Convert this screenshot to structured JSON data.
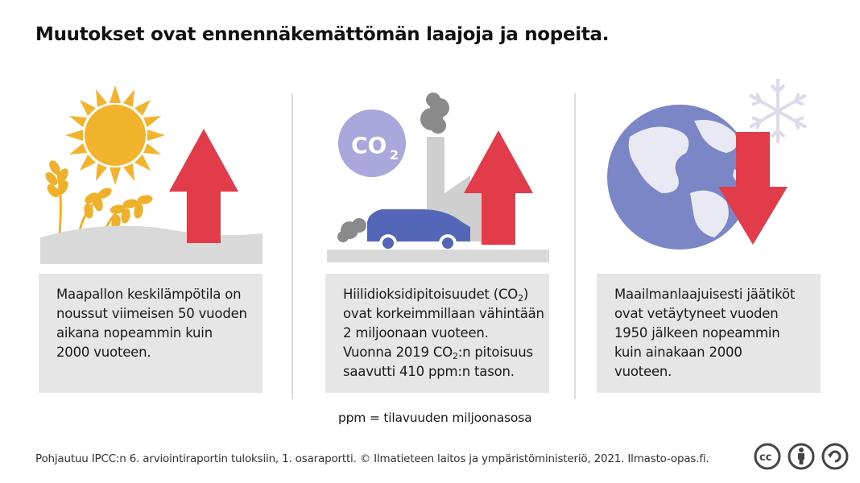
{
  "title": "Muutokset ovat ennennäkemättömän laajoja ja nopeita.",
  "panels": [
    {
      "icon": "sun-wheat-up-arrow",
      "lines": [
        "Maapallon keskilämpötila on",
        "noussut viimeisen 50 vuoden",
        "aikana nopeammin kuin",
        "2000 vuoteen."
      ]
    },
    {
      "icon": "co2-factory-car-up-arrow",
      "badge": {
        "co": "CO",
        "sub": "2"
      },
      "line1_pre": "Hiilidioksidipitoisuudet (CO",
      "line1_sub": "2",
      "line1_post": ")",
      "line2": "ovat korkeimmillaan vähintään",
      "line3": "2 miljoonaan vuoteen.",
      "line4_pre": "Vuonna 2019 CO",
      "line4_sub": "2",
      "line4_post": ":n pitoisuus",
      "line5": "saavutti 410 ppm:n tason."
    },
    {
      "icon": "globe-snowflake-down-arrow",
      "lines": [
        "Maailmanlaajuisesti jäätiköt",
        "ovat vetäytyneet vuoden",
        "1950 jälkeen nopeammin",
        "kuin ainakaan 2000",
        "vuoteen."
      ]
    }
  ],
  "ppm_note": "ppm = tilavuuden miljoonasosa",
  "footer": "Pohjautuu IPCC:n  6. arviointiraportin tuloksiin, 1. osaraportti. © Ilmatieteen laitos ja ympäristöministeriö, 2021. Ilmasto-opas.fi.",
  "license_icons": {
    "cc": "cc",
    "by": "attribution",
    "sa": "share-alike"
  },
  "colors": {
    "arrow": "#e23b4a",
    "sun": "#f2b42d",
    "wheat": "#efb02b",
    "co2_circle": "#a9a7dc",
    "car": "#5366b8",
    "globe_sea": "#7b86c7",
    "smoke": "#888888",
    "box": "#e6e6e6"
  }
}
